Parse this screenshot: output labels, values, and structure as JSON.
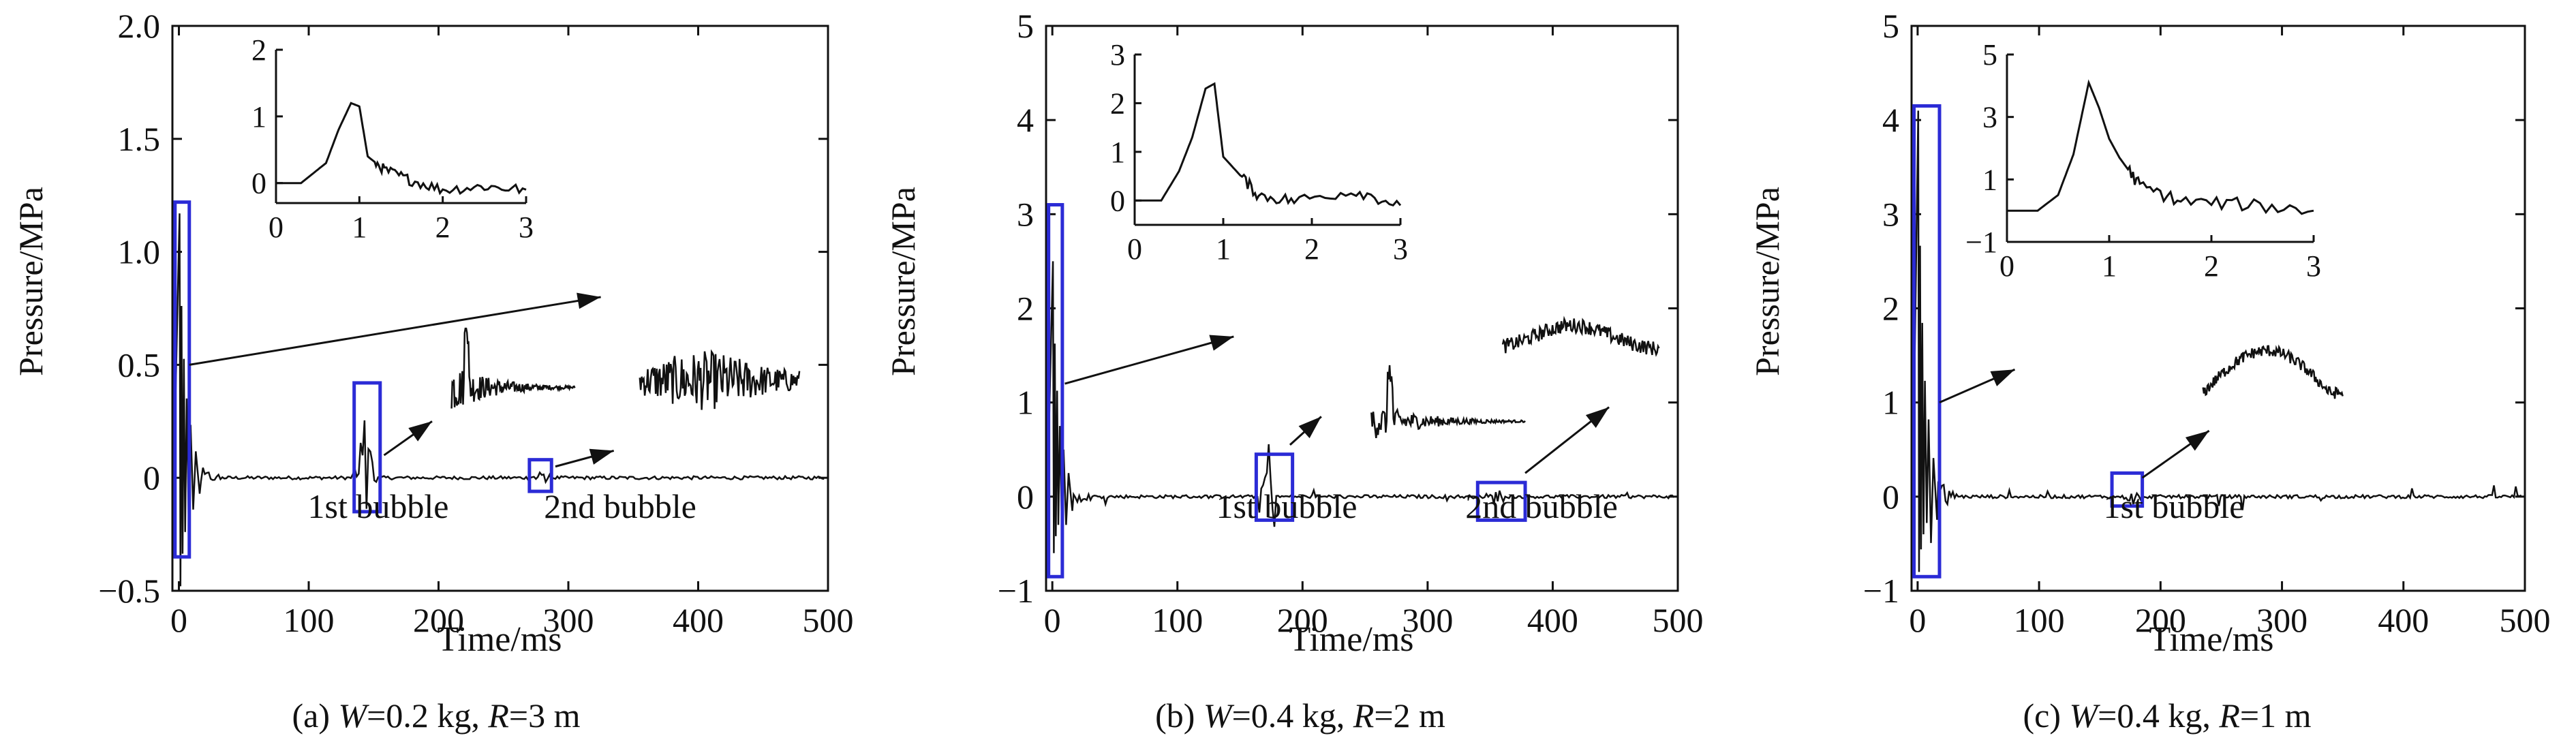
{
  "colors": {
    "axis": "#111111",
    "trace": "#111111",
    "box": "#2b2bd6"
  },
  "panels": [
    {
      "caption": {
        "pre": "(a) ",
        "w_sym": "W",
        "w_val": "=0.2 kg, ",
        "r_sym": "R",
        "r_val": "=3 m"
      },
      "ylabel": "Pressure/MPa",
      "xlabel": "Time/ms",
      "xlim": [
        -5,
        500
      ],
      "ylim": [
        -0.5,
        2.0
      ],
      "xticks": [
        "0",
        "100",
        "200",
        "300",
        "400",
        "500"
      ],
      "yticks": [
        "−0.5",
        "0",
        "0.5",
        "1.0",
        "1.5",
        "2.0"
      ],
      "bubble_labels": [
        "1st bubble",
        "2nd bubble"
      ],
      "inset": {
        "xticks": [
          "0",
          "1",
          "2",
          "3"
        ],
        "yticks": [
          "0",
          "1",
          "2"
        ],
        "ylim": [
          -0.3,
          2.0
        ]
      }
    },
    {
      "caption": {
        "pre": "(b) ",
        "w_sym": "W",
        "w_val": "=0.4 kg, ",
        "r_sym": "R",
        "r_val": "=2 m"
      },
      "ylabel": "Pressure/MPa",
      "xlabel": "Time/ms",
      "xlim": [
        -5,
        500
      ],
      "ylim": [
        -1,
        5
      ],
      "xticks": [
        "0",
        "100",
        "200",
        "300",
        "400",
        "500"
      ],
      "yticks": [
        "−1",
        "0",
        "1",
        "2",
        "3",
        "4",
        "5"
      ],
      "bubble_labels": [
        "1st bubble",
        "2nd bubble"
      ],
      "inset": {
        "xticks": [
          "0",
          "1",
          "2",
          "3"
        ],
        "yticks": [
          "0",
          "1",
          "2",
          "3"
        ],
        "ylim": [
          -0.5,
          3.0
        ]
      }
    },
    {
      "caption": {
        "pre": "(c) ",
        "w_sym": "W",
        "w_val": "=0.4 kg, ",
        "r_sym": "R",
        "r_val": "=1 m"
      },
      "ylabel": "Pressure/MPa",
      "xlabel": "Time/ms",
      "xlim": [
        -5,
        500
      ],
      "ylim": [
        -1,
        5
      ],
      "xticks": [
        "0",
        "100",
        "200",
        "300",
        "400",
        "500"
      ],
      "yticks": [
        "−1",
        "0",
        "1",
        "2",
        "3",
        "4",
        "5"
      ],
      "bubble_labels": [
        "1st bubble"
      ],
      "inset": {
        "xticks": [
          "0",
          "1",
          "2",
          "3"
        ],
        "yticks": [
          "−1",
          "1",
          "3",
          "5"
        ],
        "ylim": [
          -1,
          5
        ]
      }
    }
  ],
  "chart_data": [
    {
      "type": "line",
      "xlabel": "Time/ms",
      "ylabel": "Pressure/MPa",
      "xlim": [
        -5,
        500
      ],
      "ylim": [
        -0.5,
        2.0
      ],
      "shock_peak": {
        "x": 1,
        "y": 1.17
      },
      "min_value": {
        "x": 2,
        "y": -0.48
      },
      "bubble_pulses": [
        {
          "label": "1st bubble",
          "x": 143,
          "y": 0.3
        },
        {
          "label": "2nd bubble",
          "x": 278,
          "y": 0.03
        }
      ],
      "inset": {
        "x": [
          0,
          0.3,
          0.6,
          0.75,
          0.9,
          1.0,
          1.1,
          1.3,
          1.6,
          2.0,
          2.5,
          3.0
        ],
        "y": [
          0,
          0,
          0.3,
          0.8,
          1.2,
          1.15,
          0.4,
          0.2,
          0.05,
          -0.1,
          -0.05,
          -0.1
        ]
      }
    },
    {
      "type": "line",
      "xlabel": "Time/ms",
      "ylabel": "Pressure/MPa",
      "xlim": [
        -5,
        500
      ],
      "ylim": [
        -1,
        5
      ],
      "shock_peak": {
        "x": 1,
        "y": 2.5
      },
      "min_value": {
        "x": 3,
        "y": -0.6
      },
      "bubble_pulses": [
        {
          "label": "1st bubble",
          "x": 172,
          "y": 0.75
        },
        {
          "label": "2nd bubble",
          "x": 355,
          "y": 0.1
        }
      ],
      "inset": {
        "x": [
          0,
          0.3,
          0.5,
          0.65,
          0.8,
          0.9,
          1.0,
          1.15,
          1.4,
          1.8,
          2.5,
          3.0
        ],
        "y": [
          0,
          0,
          0.6,
          1.3,
          2.3,
          2.4,
          0.9,
          0.6,
          0.1,
          0.0,
          0.2,
          -0.1
        ]
      }
    },
    {
      "type": "line",
      "xlabel": "Time/ms",
      "ylabel": "Pressure/MPa",
      "xlim": [
        -5,
        500
      ],
      "ylim": [
        -1,
        5
      ],
      "shock_peak": {
        "x": 1,
        "y": 4.1
      },
      "min_value": {
        "x": 3,
        "y": -0.8
      },
      "bubble_pulses": [
        {
          "label": "1st bubble",
          "x": 178,
          "y": 0.1
        }
      ],
      "inset": {
        "x": [
          0,
          0.3,
          0.5,
          0.65,
          0.8,
          0.9,
          1.0,
          1.1,
          1.3,
          1.7,
          2.3,
          3.0
        ],
        "y": [
          0,
          0,
          0.5,
          1.8,
          4.1,
          3.3,
          2.3,
          1.7,
          0.8,
          0.3,
          0.2,
          0.0
        ]
      }
    }
  ]
}
